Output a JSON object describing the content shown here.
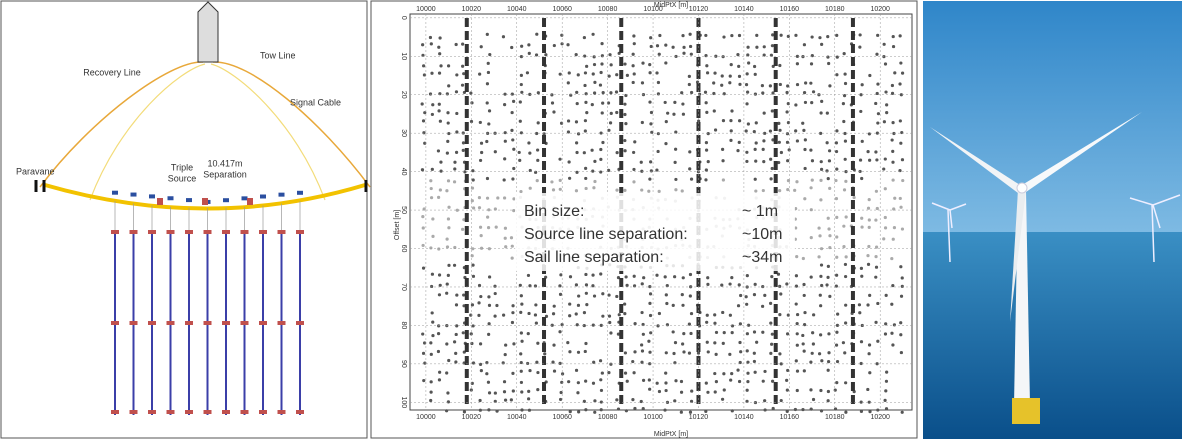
{
  "diagram": {
    "labels": {
      "recovery_line": "Recovery Line",
      "tow_line": "Tow Line",
      "signal_cable": "Signal Cable",
      "paravane": "Paravane",
      "triple_source": [
        "Triple",
        "Source"
      ],
      "separation": [
        "10.417m",
        "Separation"
      ]
    }
  },
  "chart_data": {
    "type": "coverage",
    "x_label": "MidPtX [m]",
    "y_label": "Offset [m]",
    "xlim": [
      9993,
      10214
    ],
    "ylim": [
      -1,
      102
    ],
    "xticks": [
      10000,
      10020,
      10040,
      10060,
      10080,
      10100,
      10120,
      10140,
      10160,
      10180,
      10200
    ],
    "yticks": [
      0,
      10,
      20,
      30,
      40,
      50,
      60,
      70,
      80,
      90,
      100
    ],
    "grid": true,
    "annotation": [
      [
        "Bin size:",
        "~  1m"
      ],
      [
        "Source line separation:",
        "~10m"
      ],
      [
        "Sail line separation:",
        "~34m"
      ]
    ]
  }
}
